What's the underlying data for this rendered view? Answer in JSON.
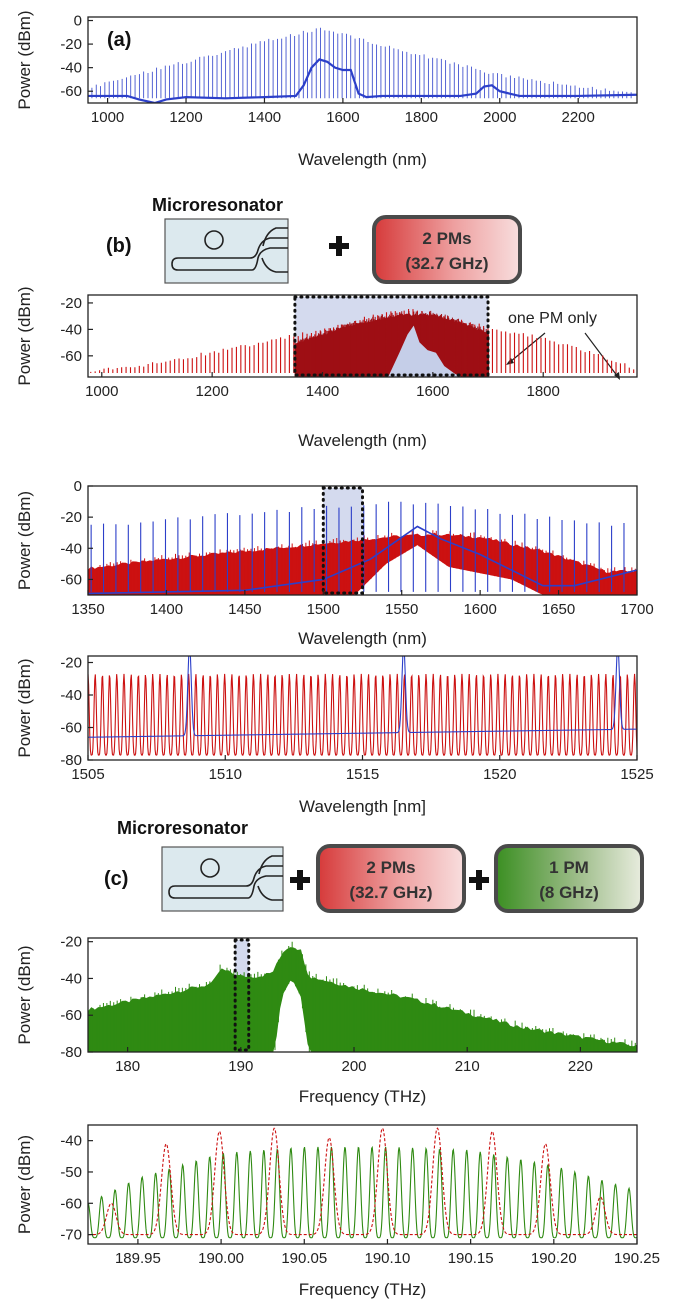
{
  "colors": {
    "blue": "#2c3fc9",
    "red": "#cc1111",
    "darkred": "#9e0f14",
    "green": "#2f8a12",
    "selection": "#c5cee8",
    "device_bg": "#dce9ee"
  },
  "schematic_b": {
    "letter": "(b)",
    "microresonator_title": "Microresonator",
    "plus": "+",
    "pm_box": {
      "line1": "2 PMs",
      "line2": "(32.7 GHz)"
    }
  },
  "schematic_c": {
    "letter": "(c)",
    "microresonator_title": "Microresonator",
    "plus": "+",
    "pm_box1": {
      "line1": "2 PMs",
      "line2": "(32.7 GHz)"
    },
    "pm_box2": {
      "line1": "1 PM",
      "line2": "(8 GHz)"
    }
  },
  "chart_data": [
    {
      "id": "a",
      "type": "line",
      "panel_label": "(a)",
      "xlabel": "Wavelength (nm)",
      "ylabel": "Power (dBm)",
      "xlim": [
        950,
        2350
      ],
      "ylim": [
        -70,
        3
      ],
      "xticks": [
        1000,
        1200,
        1400,
        1600,
        1800,
        2000,
        2200
      ],
      "yticks": [
        0,
        -20,
        -40,
        -60
      ],
      "series": [
        {
          "kind": "comb",
          "color": "blue",
          "x_start": 960,
          "x_end": 2340,
          "spacing": 11,
          "envelope": {
            "x": [
              960,
              1100,
              1300,
              1450,
              1550,
              1650,
              1800,
              2000,
              2150,
              2340
            ],
            "y": [
              -55,
              -42,
              -25,
              -12,
              -5,
              -15,
              -28,
              -45,
              -52,
              -60
            ]
          },
          "floor": -66
        },
        {
          "kind": "line",
          "color": "blue",
          "x": [
            950,
            1050,
            1080,
            1120,
            1150,
            1200,
            1300,
            1400,
            1480,
            1500,
            1520,
            1540,
            1560,
            1580,
            1600,
            1620,
            1640,
            1660,
            1700,
            1800,
            1900,
            1940,
            1960,
            1980,
            2000,
            2050,
            2100,
            2200,
            2350
          ],
          "y": [
            -64,
            -64,
            -67,
            -70,
            -67,
            -65,
            -66,
            -65,
            -64,
            -55,
            -40,
            -33,
            -35,
            -40,
            -42,
            -42,
            -62,
            -65,
            -64,
            -64,
            -64,
            -62,
            -56,
            -55,
            -60,
            -64,
            -64,
            -64,
            -63
          ]
        }
      ]
    },
    {
      "id": "b1",
      "type": "line",
      "xlabel": "Wavelength (nm)",
      "ylabel": "Power (dBm)",
      "xlim": [
        975,
        1970
      ],
      "ylim": [
        -76,
        -14
      ],
      "xticks": [
        1000,
        1200,
        1400,
        1600,
        1800
      ],
      "yticks": [
        -20,
        -40,
        -60
      ],
      "selection_range": [
        1350,
        1700
      ],
      "annotation": "one PM only",
      "series": [
        {
          "kind": "comb",
          "color": "red",
          "x_start": 980,
          "x_end": 1965,
          "spacing": 8,
          "envelope": {
            "x": [
              980,
              1100,
              1200,
              1300,
              1400,
              1500,
              1560,
              1650,
              1700,
              1800,
              1900,
              1965
            ],
            "y": [
              -70,
              -64,
              -56,
              -48,
              -38,
              -28,
              -24,
              -32,
              -37,
              -45,
              -58,
              -68
            ]
          },
          "floor": -73
        },
        {
          "kind": "band",
          "color": "darkred",
          "x_start": 1350,
          "x_end": 1700,
          "top": {
            "x": [
              1350,
              1450,
              1540,
              1600,
              1650,
              1700
            ],
            "y": [
              -52,
              -38,
              -30,
              -30,
              -36,
              -44
            ]
          },
          "bottom": {
            "x": [
              1350,
              1450,
              1530,
              1560,
              1580,
              1620,
              1650,
              1700
            ],
            "y": [
              -76,
              -76,
              -76,
              -46,
              -60,
              -72,
              -76,
              -76
            ]
          }
        },
        {
          "kind": "line",
          "color": "selection",
          "x": [
            1520,
            1540,
            1555,
            1565,
            1575,
            1590,
            1605,
            1620,
            1640,
            1650
          ],
          "y": [
            -76,
            -58,
            -44,
            -38,
            -50,
            -56,
            -58,
            -68,
            -74,
            -76
          ]
        }
      ]
    },
    {
      "id": "b2",
      "type": "line",
      "xlabel": "Wavelength (nm)",
      "ylabel": "Power (dBm)",
      "xlim": [
        1350,
        1700
      ],
      "ylim": [
        -70,
        0
      ],
      "xticks": [
        1350,
        1400,
        1450,
        1500,
        1550,
        1600,
        1650,
        1700
      ],
      "yticks": [
        0,
        -20,
        -40,
        -60
      ],
      "selection_range": [
        1500,
        1525
      ],
      "series": [
        {
          "kind": "band",
          "color": "red",
          "x_start": 1350,
          "x_end": 1700,
          "top": {
            "x": [
              1350,
              1400,
              1450,
              1500,
              1540,
              1570,
              1600,
              1640,
              1680,
              1700
            ],
            "y": [
              -54,
              -48,
              -43,
              -38,
              -34,
              -32,
              -34,
              -43,
              -56,
              -56
            ]
          },
          "bottom": {
            "x": [
              1350,
              1520,
              1540,
              1560,
              1580,
              1600,
              1620,
              1640,
              1700
            ],
            "y": [
              -70,
              -70,
              -50,
              -38,
              -52,
              -56,
              -60,
              -70,
              -70
            ]
          }
        },
        {
          "kind": "comb",
          "color": "blue",
          "x_start": 1352,
          "x_end": 1698,
          "spacing": 7.9,
          "envelope": {
            "x": [
              1350,
              1450,
              1550,
              1600,
              1650,
              1700
            ],
            "y": [
              -24,
              -16,
              -8,
              -14,
              -20,
              -24
            ]
          },
          "floor": -68
        },
        {
          "kind": "line",
          "color": "blue",
          "x": [
            1350,
            1450,
            1500,
            1530,
            1560,
            1575,
            1600,
            1620,
            1640,
            1660,
            1700
          ],
          "y": [
            -69,
            -67,
            -60,
            -47,
            -26,
            -34,
            -44,
            -54,
            -64,
            -64,
            -54
          ]
        }
      ]
    },
    {
      "id": "b3",
      "type": "line",
      "xlabel": "Wavelength [nm]",
      "ylabel": "Power (dBm)",
      "xlim": [
        1505,
        1525
      ],
      "ylim": [
        -80,
        -16
      ],
      "xticks": [
        1505,
        1510,
        1515,
        1520,
        1525
      ],
      "yticks": [
        -20,
        -40,
        -60,
        -80
      ],
      "series": [
        {
          "kind": "osc",
          "color": "red",
          "x_start": 1505,
          "x_end": 1525,
          "period": 0.262,
          "min": -77,
          "max": -27
        },
        {
          "kind": "peaks",
          "color": "blue",
          "baseline_start": -66,
          "baseline_end": -61,
          "peaks_x": [
            1508.7,
            1516.5,
            1524.3
          ],
          "peak_y": -10
        }
      ]
    },
    {
      "id": "c1",
      "type": "line",
      "xlabel": "Frequency (THz)",
      "ylabel": "Power (dBm)",
      "xlim": [
        176.5,
        225
      ],
      "ylim": [
        -80,
        -18
      ],
      "xticks": [
        180,
        190,
        200,
        210,
        220
      ],
      "yticks": [
        -20,
        -40,
        -60,
        -80
      ],
      "selection_range": [
        189.5,
        190.7
      ],
      "series": [
        {
          "kind": "band",
          "color": "green",
          "x_start": 176.5,
          "x_end": 225,
          "top": {
            "x": [
              176.5,
              183,
              187.5,
              188.2,
              190,
              191.5,
              192.8,
              193.8,
              194.5,
              195.3,
              196,
              200,
              205,
              210,
              215,
              220,
              225
            ],
            "y": [
              -58,
              -50,
              -44,
              -36,
              -40,
              -40,
              -38,
              -26,
              -23,
              -26,
              -40,
              -46,
              -52,
              -60,
              -68,
              -73,
              -78
            ]
          },
          "bottom": {
            "x": [
              176.5,
              190,
              193,
              193.6,
              194.5,
              195.3,
              196,
              225
            ],
            "y": [
              -80,
              -80,
              -80,
              -50,
              -40,
              -50,
              -80,
              -80
            ]
          }
        }
      ]
    },
    {
      "id": "c2",
      "type": "line",
      "xlabel": "Frequency (THz)",
      "ylabel": "Power (dBm)",
      "xlim": [
        189.92,
        190.25
      ],
      "ylim": [
        -73,
        -35
      ],
      "xticks": [
        189.95,
        190.0,
        190.05,
        190.1,
        190.15,
        190.2,
        190.25
      ],
      "xtick_labels": [
        "189.95",
        "190.00",
        "190.05",
        "190.10",
        "190.15",
        "190.20",
        "190.25"
      ],
      "yticks": [
        -40,
        -50,
        -60,
        -70
      ],
      "series": [
        {
          "kind": "osc",
          "color": "green",
          "x_start": 189.92,
          "x_end": 190.25,
          "period": 0.00813,
          "min": -71,
          "envelope": {
            "x": [
              189.92,
              189.95,
              190.0,
              190.05,
              190.1,
              190.15,
              190.2,
              190.25
            ],
            "y": [
              -60,
              -52,
              -44,
              -42,
              -42,
              -43,
              -48,
              -56
            ]
          }
        },
        {
          "kind": "peaks",
          "color": "red",
          "dashed": true,
          "baseline_start": -70,
          "baseline_end": -70,
          "width": 0.004,
          "peaks_x": [
            189.934,
            189.967,
            189.999,
            190.032,
            190.065,
            190.097,
            190.13,
            190.163,
            190.195,
            190.228
          ],
          "peaks_y": [
            -60,
            -41,
            -37,
            -36,
            -39,
            -36,
            -36,
            -37,
            -41,
            -58
          ]
        }
      ]
    }
  ]
}
